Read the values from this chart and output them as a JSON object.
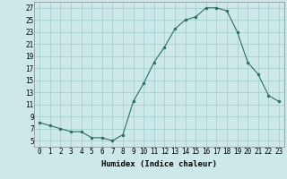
{
  "x": [
    0,
    1,
    2,
    3,
    4,
    5,
    6,
    7,
    8,
    9,
    10,
    11,
    12,
    13,
    14,
    15,
    16,
    17,
    18,
    19,
    20,
    21,
    22,
    23
  ],
  "y": [
    8,
    7.5,
    7,
    6.5,
    6.5,
    5.5,
    5.5,
    5,
    6,
    11.5,
    14.5,
    18,
    20.5,
    23.5,
    25,
    25.5,
    27,
    27,
    26.5,
    23,
    18,
    16,
    12.5,
    11.5
  ],
  "line_color": "#2d6e63",
  "marker_color": "#2d6e63",
  "bg_color": "#cce8e8",
  "grid_color": "#9ecece",
  "xlabel": "Humidex (Indice chaleur)",
  "ylim": [
    4,
    28
  ],
  "xlim": [
    -0.5,
    23.5
  ],
  "yticks": [
    5,
    7,
    9,
    11,
    13,
    15,
    17,
    19,
    21,
    23,
    25,
    27
  ],
  "xticks": [
    0,
    1,
    2,
    3,
    4,
    5,
    6,
    7,
    8,
    9,
    10,
    11,
    12,
    13,
    14,
    15,
    16,
    17,
    18,
    19,
    20,
    21,
    22,
    23
  ],
  "xtick_labels": [
    "0",
    "1",
    "2",
    "3",
    "4",
    "5",
    "6",
    "7",
    "8",
    "9",
    "10",
    "11",
    "12",
    "13",
    "14",
    "15",
    "16",
    "17",
    "18",
    "19",
    "20",
    "21",
    "22",
    "23"
  ],
  "ytick_labels": [
    "5",
    "7",
    "9",
    "11",
    "13",
    "15",
    "17",
    "19",
    "21",
    "23",
    "25",
    "27"
  ],
  "axis_fontsize": 5.5,
  "xlabel_fontsize": 6.5
}
